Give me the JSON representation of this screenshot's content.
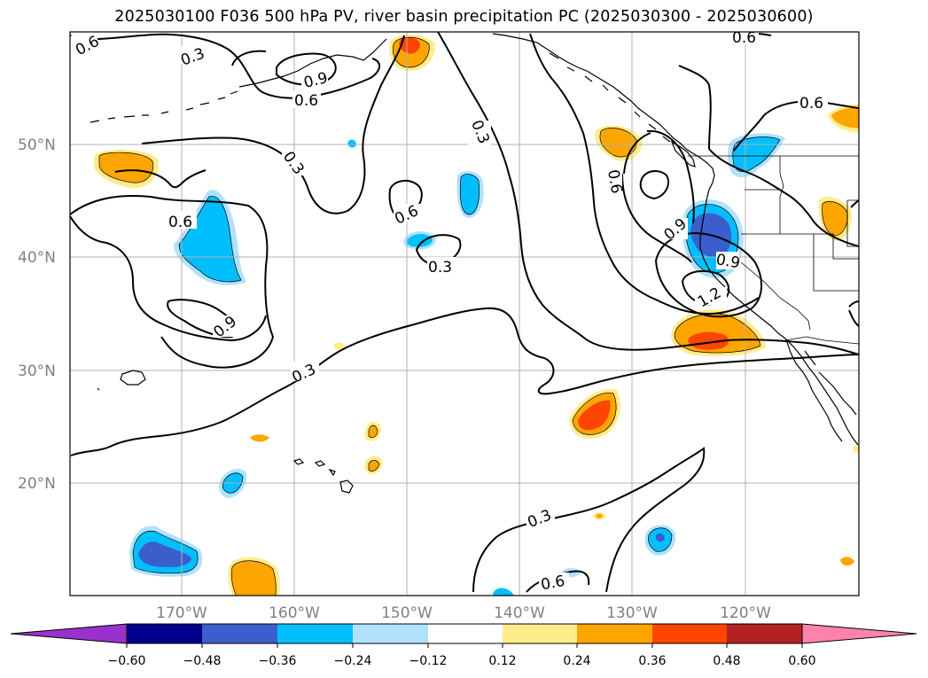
{
  "title": "2025030100 F036 500 hPa PV, river basin precipitation PC (2025030300 - 2025030600)",
  "map": {
    "lon_ticks": [
      "170°W",
      "160°W",
      "150°W",
      "140°W",
      "130°W",
      "120°W"
    ],
    "lat_ticks": [
      "50°N",
      "40°N",
      "30°N",
      "20°N"
    ],
    "contour_labels": [
      "0.6",
      "0.3",
      "0.9",
      "0.6",
      "0.3",
      "0.6",
      "0.3",
      "0.6",
      "0.9",
      "0.3",
      "0.6",
      "0.3",
      "0.6",
      "0.6",
      "0.3",
      "0.9",
      "0.9",
      "1.2",
      "0.6"
    ]
  },
  "colorbar": {
    "ticks": [
      "−0.60",
      "−0.48",
      "−0.36",
      "−0.24",
      "−0.12",
      "0.12",
      "0.24",
      "0.36",
      "0.48",
      "0.60"
    ],
    "colors": [
      "#9932cc",
      "#00008b",
      "#3a5fcd",
      "#00bfff",
      "#b0e2ff",
      "#ffffff",
      "#ffec8b",
      "#ffa500",
      "#ff4500",
      "#b22222",
      "#ff82ab"
    ]
  },
  "colors": {
    "contour": "#000000",
    "coast": "#000000",
    "grid": "#b0b0b0",
    "tick_label": "#808080"
  }
}
